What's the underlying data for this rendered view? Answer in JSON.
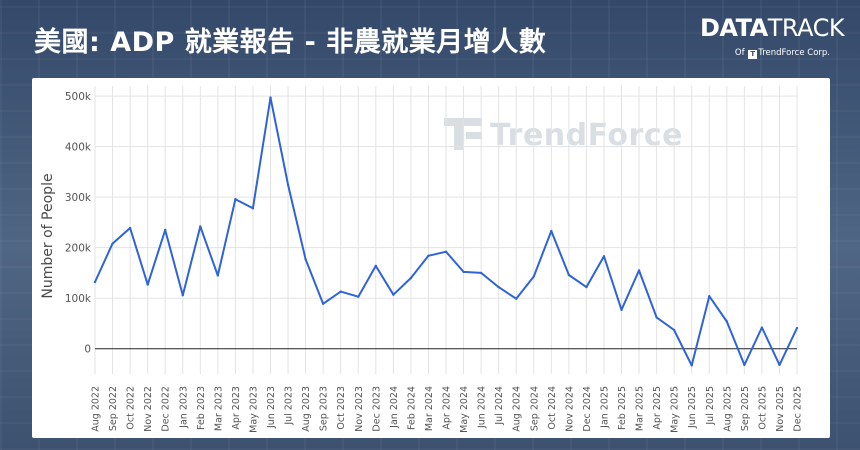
{
  "header": {
    "title": "美國: ADP 就業報告 - 非農就業月增人數",
    "brand_part1": "DATA",
    "brand_part2": "TRACK",
    "brand_sub_prefix": "Of",
    "brand_sub_mark": "T",
    "brand_sub_name": "TrendForce Corp."
  },
  "watermark": "TrendForce",
  "colors": {
    "line": "#2f63d8",
    "grid": "#e3e3e3",
    "zero_line": "#222222",
    "background": "#3a4f6b"
  },
  "chart_data": {
    "type": "line",
    "ylabel": "Number of People",
    "ylim": [
      -50000,
      520000
    ],
    "yticks": [
      0,
      100000,
      200000,
      300000,
      400000,
      500000
    ],
    "ytick_labels": [
      "0",
      "100k",
      "200k",
      "300k",
      "400k",
      "500k"
    ],
    "grid": true,
    "categories": [
      "Aug 2022",
      "Sep 2022",
      "Oct 2022",
      "Nov 2022",
      "Dec 2022",
      "Jan 2023",
      "Feb 2023",
      "Mar 2023",
      "Apr 2023",
      "May 2023",
      "Jun 2023",
      "Jul 2023",
      "Aug 2023",
      "Sep 2023",
      "Oct 2023",
      "Nov 2023",
      "Dec 2023",
      "Jan 2024",
      "Feb 2024",
      "Mar 2024",
      "Apr 2024",
      "May 2024",
      "Jun 2024",
      "Jul 2024",
      "Aug 2024",
      "Sep 2024",
      "Oct 2024",
      "Nov 2024",
      "Dec 2024",
      "Jan 2025",
      "Feb 2025",
      "Mar 2025",
      "Apr 2025",
      "May 2025",
      "Jun 2025",
      "Jul 2025",
      "Aug 2025",
      "Sep 2025",
      "Oct 2025",
      "Nov 2025",
      "Dec 2025"
    ],
    "values": [
      132000,
      208000,
      239000,
      127000,
      235000,
      106000,
      242000,
      145000,
      296000,
      278000,
      497000,
      324000,
      177000,
      89000,
      113000,
      103000,
      164000,
      107000,
      140000,
      184000,
      192000,
      152000,
      150000,
      122000,
      99000,
      143000,
      233000,
      146000,
      122000,
      183000,
      77000,
      155000,
      62000,
      37000,
      -33000,
      104000,
      54000,
      -32000,
      42000,
      -32000,
      41000
    ]
  }
}
